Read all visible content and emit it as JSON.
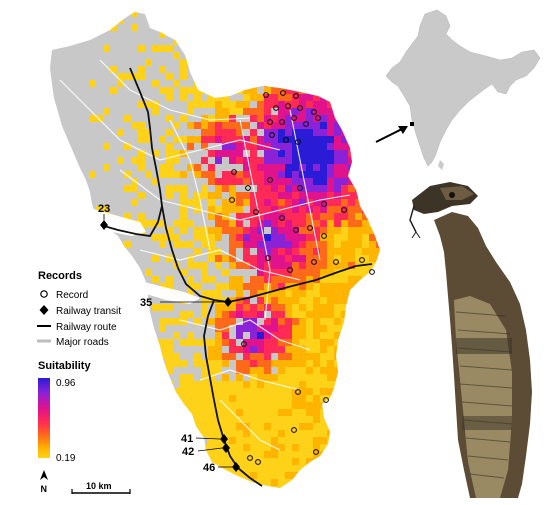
{
  "records_legend": {
    "title": "Records",
    "items": [
      {
        "label": "Record",
        "symbol": "open-circle-icon"
      },
      {
        "label": "Railway transit",
        "symbol": "diamond-icon"
      },
      {
        "label": "Railway route",
        "symbol": "black-line-icon"
      },
      {
        "label": "Major roads",
        "symbol": "grey-line-icon"
      }
    ]
  },
  "suitability_legend": {
    "title": "Suitability",
    "max_label": "0.96",
    "min_label": "0.19",
    "colors": [
      "#2a1bd6",
      "#8a22d8",
      "#e0128c",
      "#ff2a55",
      "#ff6a1a",
      "#ffb400",
      "#ffd21a"
    ]
  },
  "transit_labels": [
    "23",
    "35",
    "41",
    "42",
    "46"
  ],
  "scalebar": {
    "label": "10 km"
  },
  "north_arrow": {
    "label": "N"
  },
  "colors": {
    "land": "#c8c8c8",
    "background": "#ffffff",
    "railway": "#111111",
    "roads": "#ffffff"
  }
}
